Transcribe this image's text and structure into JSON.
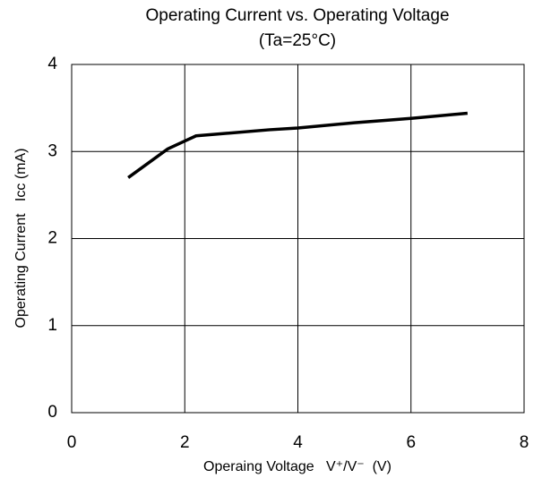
{
  "chart_data": {
    "type": "line",
    "title": "Operating Current vs. Operating Voltage",
    "subtitle": "(Ta=25°C)",
    "x_label": "Operaing Voltage   V⁺/V⁻  (V)",
    "y_label": "Operating Current   Icc (mA)",
    "x": [
      1,
      1.7,
      2,
      2.2,
      3.5,
      4,
      5,
      6,
      7
    ],
    "series": [
      {
        "name": "Icc",
        "color": "#000000",
        "values": [
          2.7,
          3.03,
          3.12,
          3.18,
          3.25,
          3.27,
          3.33,
          3.38,
          3.44
        ]
      }
    ],
    "xlim": [
      0,
      8
    ],
    "xticks": [
      0,
      2,
      4,
      6,
      8
    ],
    "ylim": [
      0,
      4
    ],
    "yticks": [
      0,
      1,
      2,
      3,
      4
    ],
    "grid": true
  }
}
